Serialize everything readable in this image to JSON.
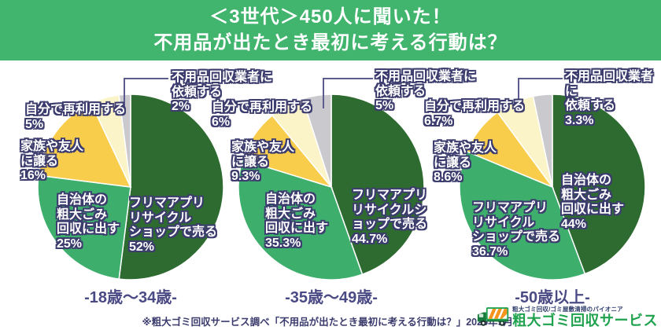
{
  "header": {
    "title_line1": "＜3世代＞450人に聞いた！",
    "title_line2": "不用品が出たとき最初に考える行動は？"
  },
  "colors": {
    "header_bg": "#41b46d",
    "slice_colors": [
      "#2e6b31",
      "#3eae6d",
      "#f9cd4c",
      "#fbf4c9",
      "#c9c9ce"
    ],
    "label_outline": "#3c3c6e",
    "leader_line": "#5c5c8f",
    "navy_text": "#4a4a85",
    "brand_green": "#1fa24d"
  },
  "chart_data": [
    {
      "type": "pie",
      "age_group": "-18歳〜34歳-",
      "slices": [
        {
          "label": "フリマアプリリサイクルショップで売る",
          "value": 52,
          "display": "フリマアプリ\nリサイクル\nショップで売る\n52%"
        },
        {
          "label": "自治体の粗大ごみ回収に出す",
          "value": 25,
          "display": "自治体の\n粗大ごみ\n回収に出す\n25%"
        },
        {
          "label": "家族や友人に譲る",
          "value": 16,
          "display": "家族や友人\nに譲る\n16%"
        },
        {
          "label": "自分で再利用する",
          "value": 5,
          "display": "自分で再利用する\n5%"
        },
        {
          "label": "不用品回収業者に依頼する",
          "value": 2,
          "display": "不用品回収業者に\n依頼する\n2%"
        }
      ]
    },
    {
      "type": "pie",
      "age_group": "-35歳〜49歳-",
      "slices": [
        {
          "label": "フリマアプリリサイクルショップで売る",
          "value": 44.7,
          "display": "フリマアプリ\nリサイクルシ\nョップで売る\n44.7%"
        },
        {
          "label": "自治体の粗大ごみ回収に出す",
          "value": 35.3,
          "display": "自治体の\n粗大ごみ\n回収に出す\n35.3%"
        },
        {
          "label": "家族や友人に譲る",
          "value": 9.3,
          "display": "家族や友人\nに譲る\n9.3%"
        },
        {
          "label": "自分で再利用する",
          "value": 6,
          "display": "自分で再利用する\n6%"
        },
        {
          "label": "不用品回収業者に依頼する",
          "value": 5,
          "display": "不用品回収業者に\n依頼する\n5%"
        }
      ]
    },
    {
      "type": "pie",
      "age_group": "-50歳以上-",
      "slices": [
        {
          "label": "自治体の粗大ごみ回収に出す",
          "value": 44,
          "display": "自治体の\n粗大ごみ\n回収に出す\n44%"
        },
        {
          "label": "フリマアプリリサイクルショップで売る",
          "value": 36.7,
          "display": "フリマアプリ\nリサイクル\nショップで売る\n36.7%"
        },
        {
          "label": "家族や友人に譲る",
          "value": 8.6,
          "display": "家族や友人\nに譲る\n8.6%"
        },
        {
          "label": "自分で再利用する",
          "value": 6.7,
          "display": "自分で再利用する\n6.7%"
        },
        {
          "label": "不用品回収業者に依頼する",
          "value": 3.3,
          "display": "不用品回収業者に\n依頼する\n3.3%"
        }
      ]
    }
  ],
  "footer": {
    "note": "※粗大ゴミ回収サービス調べ「不用品が出たとき最初に考える行動は？」2025年9月",
    "logo_tagline": "粗大ゴミ回収/ゴミ屋敷清掃のパイオニア",
    "logo_name": "粗大ゴミ回収サービス"
  }
}
